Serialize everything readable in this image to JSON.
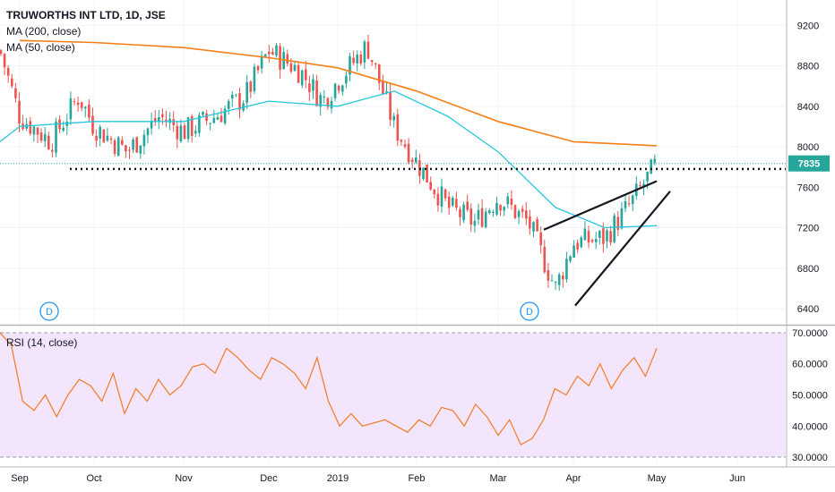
{
  "chart_data": {
    "type": "candlestick",
    "title": "TRUWORTHS INT LTD, 1D, JSE",
    "overlays": [
      {
        "name": "MA (200, close)",
        "color": "#f57f17"
      },
      {
        "name": "MA (50, close)",
        "color": "#26c6da"
      }
    ],
    "price_axis": {
      "ticks": [
        "9200",
        "8800",
        "8400",
        "8000",
        "7600",
        "7200",
        "6800",
        "6400"
      ],
      "range": [
        6250,
        9450
      ]
    },
    "last_price": {
      "label": "7835",
      "value": 7835,
      "color": "#26a69a"
    },
    "support_line": {
      "value": 7780
    },
    "time_axis": {
      "labels": [
        "Sep",
        "Oct",
        "Nov",
        "Dec",
        "2019",
        "Feb",
        "Mar",
        "Apr",
        "May",
        "Jun"
      ]
    },
    "events": [
      {
        "label": "D",
        "date": "Sep"
      },
      {
        "label": "D",
        "date": "Mar"
      }
    ],
    "price_series": [
      {
        "date": "Aug",
        "close": 8950
      },
      {
        "date": "Sep",
        "close": 8300
      },
      {
        "date": "mid-Sep",
        "close": 8050
      },
      {
        "date": "late-Sep",
        "close": 8500
      },
      {
        "date": "Oct",
        "close": 8200
      },
      {
        "date": "mid-Oct",
        "close": 7950
      },
      {
        "date": "late-Oct",
        "close": 8300
      },
      {
        "date": "Nov",
        "close": 8150
      },
      {
        "date": "mid-Nov",
        "close": 8300
      },
      {
        "date": "late-Nov",
        "close": 8500
      },
      {
        "date": "Dec",
        "close": 8950
      },
      {
        "date": "mid-Dec",
        "close": 8750
      },
      {
        "date": "late-Dec",
        "close": 8450
      },
      {
        "date": "2019",
        "close": 8650
      },
      {
        "date": "mid-Jan",
        "close": 9000
      },
      {
        "date": "late-Jan",
        "close": 8200
      },
      {
        "date": "Feb",
        "close": 7850
      },
      {
        "date": "mid-Feb",
        "close": 7400
      },
      {
        "date": "late-Feb",
        "close": 7250
      },
      {
        "date": "Mar",
        "close": 7500
      },
      {
        "date": "mid-Mar",
        "close": 7250
      },
      {
        "date": "late-Mar",
        "close": 6600
      },
      {
        "date": "Apr",
        "close": 7050
      },
      {
        "date": "mid-Apr",
        "close": 7100
      },
      {
        "date": "late-Apr",
        "close": 7450
      },
      {
        "date": "May",
        "close": 7835
      }
    ],
    "ma200_series": [
      {
        "date": "Sep",
        "value": 9050
      },
      {
        "date": "Oct",
        "value": 9030
      },
      {
        "date": "Nov",
        "value": 8980
      },
      {
        "date": "Dec",
        "value": 8880
      },
      {
        "date": "2019",
        "value": 8780
      },
      {
        "date": "Feb",
        "value": 8550
      },
      {
        "date": "Mar",
        "value": 8250
      },
      {
        "date": "Apr",
        "value": 8050
      },
      {
        "date": "May",
        "value": 8010
      }
    ],
    "ma50_series": [
      {
        "date": "Aug",
        "value": 8050
      },
      {
        "date": "Sep",
        "value": 8200
      },
      {
        "date": "Oct",
        "value": 8250
      },
      {
        "date": "Nov",
        "value": 8250
      },
      {
        "date": "Dec",
        "value": 8450
      },
      {
        "date": "2019",
        "value": 8400
      },
      {
        "date": "late-Jan",
        "value": 8550
      },
      {
        "date": "mid-Feb",
        "value": 8300
      },
      {
        "date": "Mar",
        "value": 7950
      },
      {
        "date": "late-Mar",
        "value": 7400
      },
      {
        "date": "mid-Apr",
        "value": 7200
      },
      {
        "date": "May",
        "value": 7220
      }
    ],
    "rsi": {
      "title": "RSI (14, close)",
      "axis_ticks": [
        "70.0000",
        "60.0000",
        "50.0000",
        "40.0000",
        "30.0000"
      ],
      "range": [
        28,
        72
      ],
      "upper_band": 70,
      "lower_band": 30,
      "values": [
        70,
        66,
        48,
        45,
        50,
        43,
        50,
        55,
        53,
        48,
        57,
        44,
        52,
        48,
        55,
        50,
        53,
        59,
        60,
        57,
        65,
        62,
        58,
        55,
        62,
        60,
        57,
        52,
        62,
        48,
        40,
        44,
        40,
        41,
        42,
        40,
        38,
        42,
        40,
        46,
        45,
        40,
        47,
        43,
        37,
        42,
        34,
        36,
        42,
        52,
        50,
        56,
        53,
        60,
        52,
        58,
        62,
        56,
        65
      ]
    }
  }
}
